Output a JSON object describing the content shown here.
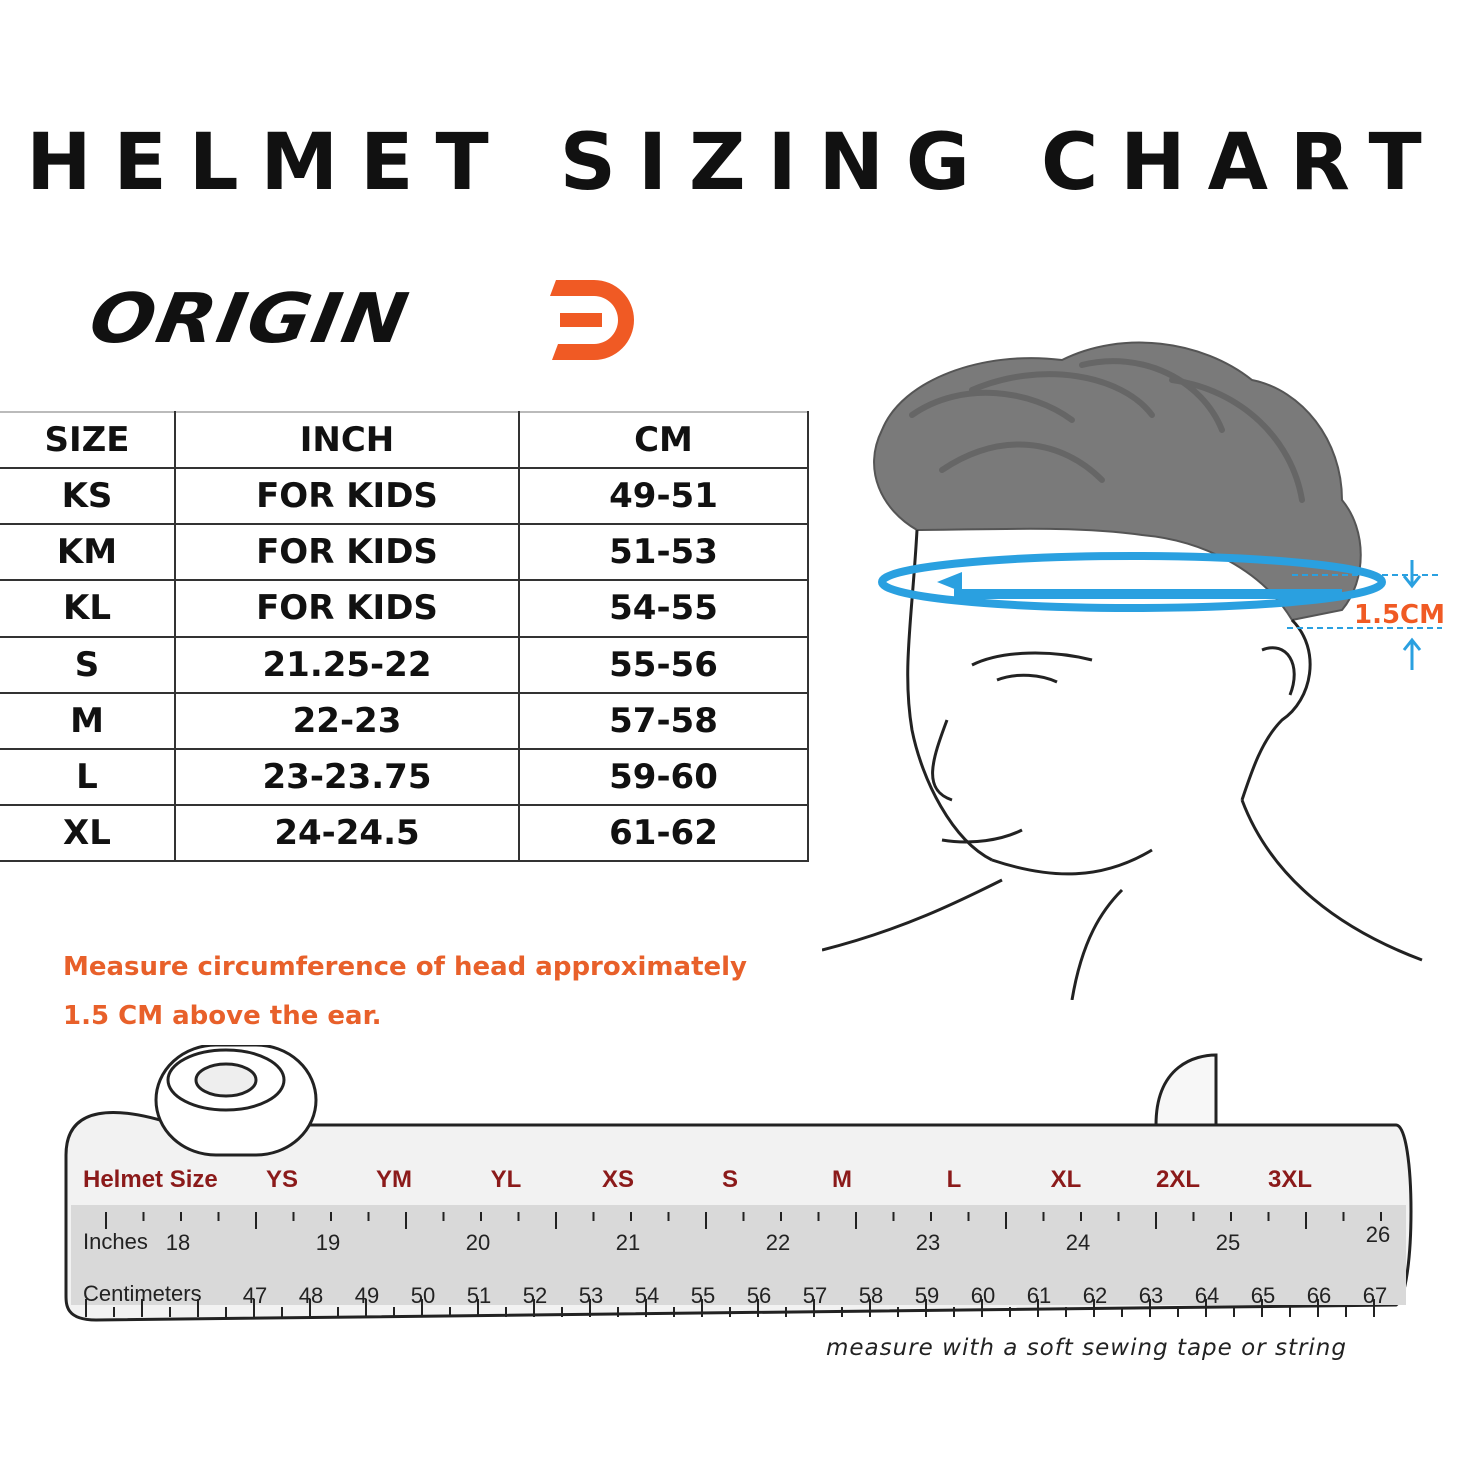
{
  "title": "HELMET SIZING CHART",
  "brand": {
    "logo_text": "ORIGIN",
    "accent_color": "#f05a24"
  },
  "table": {
    "headers": [
      "SIZE",
      "INCH",
      "CM"
    ],
    "rows": [
      [
        "KS",
        "FOR KIDS",
        "49-51"
      ],
      [
        "KM",
        "FOR KIDS",
        "51-53"
      ],
      [
        "KL",
        "FOR KIDS",
        "54-55"
      ],
      [
        "S",
        "21.25-22",
        "55-56"
      ],
      [
        "M",
        "22-23",
        "57-58"
      ],
      [
        "L",
        "23-23.75",
        "59-60"
      ],
      [
        "XL",
        "24-24.5",
        "61-62"
      ]
    ]
  },
  "illustration": {
    "offset_label": "1.5CM"
  },
  "note": {
    "line1": "Measure circumference of head approximately",
    "line2": "1.5 CM above the ear.",
    "color": "#e8602a"
  },
  "tape": {
    "helmet_label": "Helmet Size",
    "inches_label": "Inches",
    "cm_label": "Centimeters",
    "helmet_sizes": [
      "YS",
      "YM",
      "YL",
      "XS",
      "S",
      "M",
      "L",
      "XL",
      "2XL",
      "3XL"
    ],
    "inches": [
      "18",
      "19",
      "20",
      "21",
      "22",
      "23",
      "24",
      "25",
      "26"
    ],
    "centimeters": [
      "47",
      "48",
      "49",
      "50",
      "51",
      "52",
      "53",
      "54",
      "55",
      "56",
      "57",
      "58",
      "59",
      "60",
      "61",
      "62",
      "63",
      "64",
      "65",
      "66",
      "67"
    ],
    "size_color": "#8b1a1a",
    "caption": "measure with a soft sewing tape or string"
  }
}
